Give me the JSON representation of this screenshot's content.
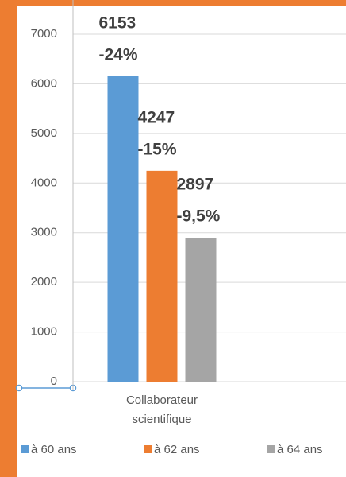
{
  "chart_data": {
    "type": "bar",
    "categories": [
      "Collaborateur scientifique"
    ],
    "series": [
      {
        "name": "à 60 ans",
        "color": "#5b9bd5",
        "values": [
          6153
        ],
        "change_labels": [
          "-24%"
        ]
      },
      {
        "name": "à 62 ans",
        "color": "#ed7d31",
        "values": [
          4247
        ],
        "change_labels": [
          "-15%"
        ]
      },
      {
        "name": "à 64 ans",
        "color": "#a5a5a5",
        "values": [
          2897
        ],
        "change_labels": [
          "-9,5%"
        ]
      }
    ],
    "ylim": [
      0,
      7000
    ],
    "yticks": [
      0,
      1000,
      2000,
      3000,
      4000,
      5000,
      6000,
      7000
    ],
    "grid": true,
    "legend": "bottom"
  }
}
